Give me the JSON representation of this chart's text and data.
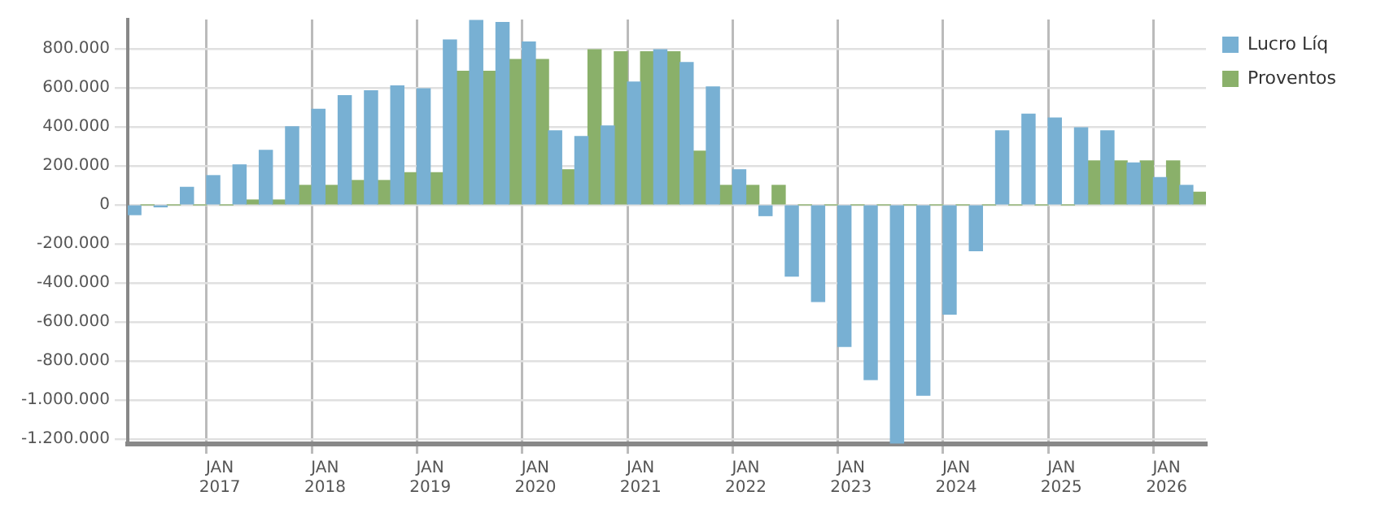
{
  "chart_data": {
    "type": "bar",
    "categories": [
      null,
      null,
      null,
      "JAN 2017",
      null,
      null,
      null,
      "JAN 2018",
      null,
      null,
      null,
      "JAN 2019",
      null,
      null,
      null,
      "JAN 2020",
      null,
      null,
      null,
      "JAN 2021",
      null,
      null,
      null,
      "JAN 2022",
      null,
      null,
      null,
      "JAN 2023",
      null,
      null,
      null,
      "JAN 2024",
      null,
      null,
      null,
      "JAN 2025",
      null,
      null,
      null,
      "JAN 2026",
      null
    ],
    "series": [
      {
        "name": "Lucro Líq",
        "color": "#78b0d3",
        "values": [
          -50000,
          -10000,
          90000,
          150000,
          205000,
          280000,
          400000,
          490000,
          560000,
          585000,
          610000,
          595000,
          845000,
          945000,
          935000,
          835000,
          380000,
          350000,
          405000,
          630000,
          795000,
          730000,
          605000,
          180000,
          -55000,
          -365000,
          -495000,
          -725000,
          -895000,
          -1220000,
          -975000,
          -560000,
          -235000,
          380000,
          465000,
          445000,
          395000,
          380000,
          215000,
          140000,
          100000
        ]
      },
      {
        "name": "Proventos",
        "color": "#8ab06a",
        "values": [
          0,
          0,
          0,
          0,
          25000,
          25000,
          100000,
          100000,
          125000,
          125000,
          165000,
          165000,
          685000,
          685000,
          745000,
          745000,
          180000,
          795000,
          785000,
          785000,
          785000,
          275000,
          100000,
          100000,
          100000,
          0,
          0,
          0,
          0,
          0,
          0,
          0,
          0,
          0,
          0,
          0,
          225000,
          225000,
          225000,
          225000,
          65000
        ]
      }
    ],
    "ylim": [
      -1225000,
      950000
    ],
    "yticks": [
      {
        "value": -1200000,
        "label": "-1.200.000"
      },
      {
        "value": -1000000,
        "label": "-1.000.000"
      },
      {
        "value": -800000,
        "label": "-800.000"
      },
      {
        "value": -600000,
        "label": "-600.000"
      },
      {
        "value": -400000,
        "label": "-400.000"
      },
      {
        "value": -200000,
        "label": "-200.000"
      },
      {
        "value": 0,
        "label": "0"
      },
      {
        "value": 200000,
        "label": "200.000"
      },
      {
        "value": 400000,
        "label": "400.000"
      },
      {
        "value": 600000,
        "label": "600.000"
      },
      {
        "value": 800000,
        "label": "800.000"
      }
    ],
    "grid": true,
    "legend": "top right"
  }
}
